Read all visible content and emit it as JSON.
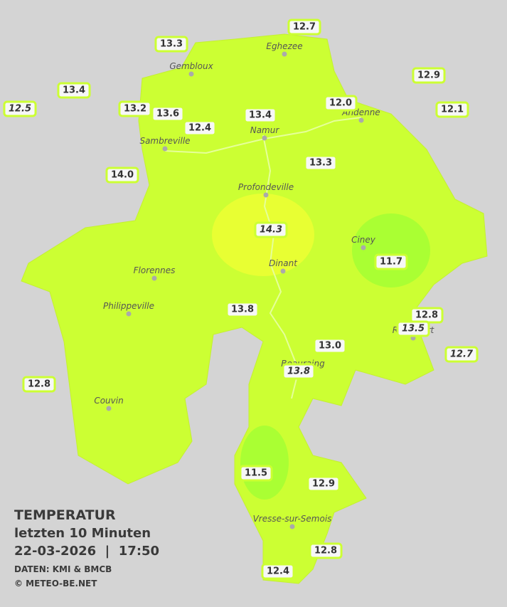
{
  "legend": {
    "title": "TEMPERATUR",
    "period": "letzten 10 Minuten",
    "datetime": "22-03-2026  |  17:50",
    "source": "DATEN: KMI & BMCB",
    "copyright": "© METEO-BE.NET"
  },
  "towns": [
    "Eghezee",
    "Gembloux",
    "Andenne",
    "Namur",
    "Sambreville",
    "Profondeville",
    "Ciney",
    "Florennes",
    "Dinant",
    "Philippeville",
    "Beauraing",
    "Rochefort",
    "Couvin",
    "Vresse-sur-Semois"
  ],
  "stations": [
    "13.3",
    "12.7",
    "13.4",
    "12.9",
    "12.5",
    "13.2",
    "13.6",
    "13.4",
    "12.0",
    "12.1",
    "12.4",
    "13.3",
    "14.0",
    "14.3",
    "11.7",
    "13.8",
    "12.8",
    "13.5",
    "12.7",
    "13.0",
    "13.8",
    "12.8",
    "11.5",
    "12.9",
    "12.8",
    "12.4"
  ]
}
